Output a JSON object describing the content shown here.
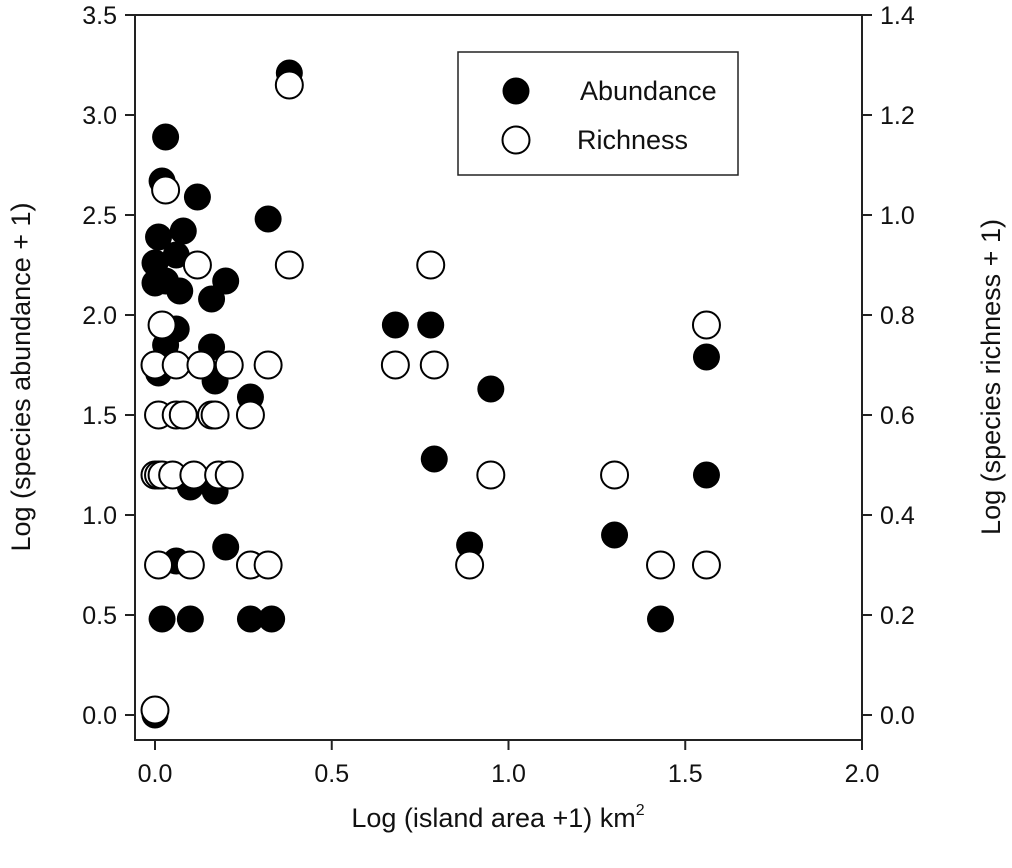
{
  "chart_data": {
    "type": "scatter",
    "xlabel": "Log (island area +1) km",
    "xlabel_sup": "2",
    "ylabel_left": "Log (species abundance + 1)",
    "ylabel_right": "Log (species richness + 1)",
    "xlim": [
      0,
      2.0
    ],
    "ylim_left": [
      0,
      3.5
    ],
    "ylim_right": [
      0,
      1.4
    ],
    "x_ticks": [
      "0.0",
      "0.5",
      "1.0",
      "1.5",
      "2.0"
    ],
    "y_left_ticks": [
      "0.0",
      "0.5",
      "1.0",
      "1.5",
      "2.0",
      "2.5",
      "3.0",
      "3.5"
    ],
    "y_right_ticks": [
      "0.0",
      "0.2",
      "0.4",
      "0.6",
      "0.8",
      "1.0",
      "1.2",
      "1.4"
    ],
    "legend": {
      "position": "top-right",
      "entries": [
        "Abundance",
        "Richness"
      ]
    },
    "series": [
      {
        "name": "Abundance",
        "axis": "left",
        "marker": "filled-circle",
        "points": [
          [
            0.0,
            0.0
          ],
          [
            0.03,
            2.89
          ],
          [
            0.02,
            2.67
          ],
          [
            0.01,
            2.39
          ],
          [
            0.12,
            2.59
          ],
          [
            0.32,
            2.48
          ],
          [
            0.38,
            3.21
          ],
          [
            0.0,
            2.26
          ],
          [
            0.0,
            2.16
          ],
          [
            0.08,
            2.42
          ],
          [
            0.06,
            2.3
          ],
          [
            0.03,
            2.17
          ],
          [
            0.07,
            2.12
          ],
          [
            0.2,
            2.17
          ],
          [
            0.16,
            2.08
          ],
          [
            0.06,
            1.93
          ],
          [
            0.03,
            1.85
          ],
          [
            0.16,
            1.84
          ],
          [
            0.17,
            1.67
          ],
          [
            0.27,
            1.59
          ],
          [
            0.01,
            1.71
          ],
          [
            0.1,
            1.14
          ],
          [
            0.17,
            1.12
          ],
          [
            0.2,
            0.84
          ],
          [
            0.06,
            0.77
          ],
          [
            0.02,
            0.48
          ],
          [
            0.1,
            0.48
          ],
          [
            0.27,
            0.48
          ],
          [
            0.33,
            0.48
          ],
          [
            0.68,
            1.95
          ],
          [
            0.78,
            1.95
          ],
          [
            0.95,
            1.63
          ],
          [
            0.79,
            1.28
          ],
          [
            0.89,
            0.85
          ],
          [
            1.3,
            0.9
          ],
          [
            1.43,
            0.48
          ],
          [
            1.56,
            1.79
          ],
          [
            1.56,
            1.2
          ]
        ]
      },
      {
        "name": "Richness",
        "axis": "right",
        "marker": "open-circle",
        "points": [
          [
            0.0,
            0.01
          ],
          [
            0.03,
            1.05
          ],
          [
            0.38,
            1.26
          ],
          [
            0.12,
            0.9
          ],
          [
            0.38,
            0.9
          ],
          [
            0.78,
            0.9
          ],
          [
            0.02,
            0.78
          ],
          [
            1.56,
            0.78
          ],
          [
            0.0,
            0.7
          ],
          [
            0.06,
            0.7
          ],
          [
            0.13,
            0.7
          ],
          [
            0.21,
            0.7
          ],
          [
            0.32,
            0.7
          ],
          [
            0.68,
            0.7
          ],
          [
            0.79,
            0.7
          ],
          [
            0.01,
            0.6
          ],
          [
            0.06,
            0.6
          ],
          [
            0.08,
            0.6
          ],
          [
            0.16,
            0.6
          ],
          [
            0.17,
            0.6
          ],
          [
            0.27,
            0.6
          ],
          [
            0.0,
            0.48
          ],
          [
            0.01,
            0.48
          ],
          [
            0.02,
            0.48
          ],
          [
            0.05,
            0.48
          ],
          [
            0.11,
            0.48
          ],
          [
            0.18,
            0.48
          ],
          [
            0.21,
            0.48
          ],
          [
            0.95,
            0.48
          ],
          [
            1.3,
            0.48
          ],
          [
            0.01,
            0.3
          ],
          [
            0.1,
            0.3
          ],
          [
            0.27,
            0.3
          ],
          [
            0.32,
            0.3
          ],
          [
            0.89,
            0.3
          ],
          [
            1.43,
            0.3
          ],
          [
            1.56,
            0.3
          ]
        ]
      }
    ]
  }
}
